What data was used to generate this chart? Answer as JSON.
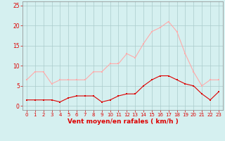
{
  "hours": [
    0,
    1,
    2,
    3,
    4,
    5,
    6,
    7,
    8,
    9,
    10,
    11,
    12,
    13,
    14,
    15,
    16,
    17,
    18,
    19,
    20,
    21,
    22,
    23
  ],
  "rafales": [
    6.5,
    8.5,
    8.5,
    5.5,
    6.5,
    6.5,
    6.5,
    6.5,
    8.5,
    8.5,
    10.5,
    10.5,
    13.0,
    12.0,
    15.5,
    18.5,
    19.5,
    21.0,
    18.5,
    13.0,
    8.5,
    5.0,
    6.5,
    6.5
  ],
  "moyen": [
    1.5,
    1.5,
    1.5,
    1.5,
    1.0,
    2.0,
    2.5,
    2.5,
    2.5,
    1.0,
    1.5,
    2.5,
    3.0,
    3.0,
    5.0,
    6.5,
    7.5,
    7.5,
    6.5,
    5.5,
    5.0,
    3.0,
    1.5,
    3.5
  ],
  "moyen_color": "#dd0000",
  "rafales_color": "#ffaaaa",
  "bg_color": "#d5f0f0",
  "grid_color": "#aacccc",
  "axis_color": "#dd0000",
  "spine_color": "#888888",
  "xlabel": "Vent moyen/en rafales ( km/h )",
  "ylim": [
    -1,
    26
  ],
  "yticks": [
    0,
    5,
    10,
    15,
    20,
    25
  ]
}
